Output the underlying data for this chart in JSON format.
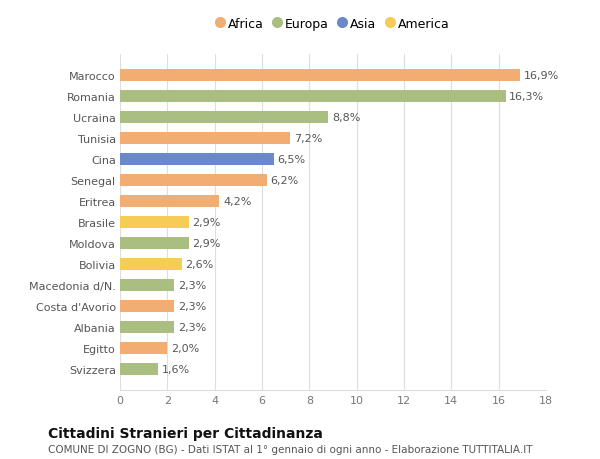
{
  "categories": [
    "Svizzera",
    "Egitto",
    "Albania",
    "Costa d'Avorio",
    "Macedonia d/N.",
    "Bolivia",
    "Moldova",
    "Brasile",
    "Eritrea",
    "Senegal",
    "Cina",
    "Tunisia",
    "Ucraina",
    "Romania",
    "Marocco"
  ],
  "values": [
    1.6,
    2.0,
    2.3,
    2.3,
    2.3,
    2.6,
    2.9,
    2.9,
    4.2,
    6.2,
    6.5,
    7.2,
    8.8,
    16.3,
    16.9
  ],
  "continents": [
    "Europa",
    "Africa",
    "Europa",
    "Africa",
    "Europa",
    "America",
    "Europa",
    "America",
    "Africa",
    "Africa",
    "Asia",
    "Africa",
    "Europa",
    "Europa",
    "Africa"
  ],
  "colors": {
    "Africa": "#F2AE72",
    "Europa": "#ABBE82",
    "Asia": "#6B88C8",
    "America": "#F5CC55"
  },
  "legend_order": [
    "Africa",
    "Europa",
    "Asia",
    "America"
  ],
  "xlim": [
    0,
    18
  ],
  "xticks": [
    0,
    2,
    4,
    6,
    8,
    10,
    12,
    14,
    16,
    18
  ],
  "title": "Cittadini Stranieri per Cittadinanza",
  "subtitle": "COMUNE DI ZOGNO (BG) - Dati ISTAT al 1° gennaio di ogni anno - Elaborazione TUTTITALIA.IT",
  "bar_height": 0.55,
  "label_fontsize": 8,
  "value_fontsize": 8,
  "title_fontsize": 10,
  "subtitle_fontsize": 7.5,
  "background_color": "#ffffff",
  "grid_color": "#dddddd"
}
